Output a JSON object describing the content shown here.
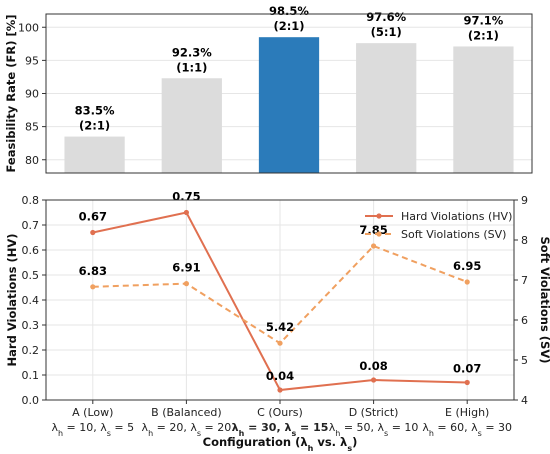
{
  "chart_data": [
    {
      "type": "bar",
      "ylabel": "Feasibility Rate (FR) [%]",
      "ylim": [
        78,
        102
      ],
      "yticks": [
        80,
        85,
        90,
        95,
        100
      ],
      "categories": [
        "A (Low)",
        "B (Balanced)",
        "C (Ours)",
        "D (Strict)",
        "E (High)"
      ],
      "values": [
        83.5,
        92.3,
        98.5,
        97.6,
        97.1
      ],
      "value_labels": [
        "83.5%",
        "92.3%",
        "98.5%",
        "97.6%",
        "97.1%"
      ],
      "ratio_labels": [
        "(2:1)",
        "(1:1)",
        "(2:1)",
        "(5:1)",
        "(2:1)"
      ],
      "highlight_index": 2,
      "colors": {
        "default": "#dcdcdc",
        "highlight": "#2b7bba"
      },
      "grid": true
    },
    {
      "type": "line",
      "categories": [
        "A (Low)",
        "B (Balanced)",
        "C (Ours)",
        "D (Strict)",
        "E (High)"
      ],
      "sublabels": [
        {
          "pre": "λ",
          "sub1": "h",
          "mid": " = 10, λ",
          "sub2": "s",
          "post": " = 5",
          "bold": false
        },
        {
          "pre": "λ",
          "sub1": "h",
          "mid": " = 20, λ",
          "sub2": "s",
          "post": " = 20",
          "bold": false
        },
        {
          "pre": "λ",
          "sub1": "h",
          "mid": " = 30, λ",
          "sub2": "s",
          "post": " = 15",
          "bold": true
        },
        {
          "pre": "λ",
          "sub1": "h",
          "mid": " = 50, λ",
          "sub2": "s",
          "post": " = 10",
          "bold": false
        },
        {
          "pre": "λ",
          "sub1": "h",
          "mid": " = 60, λ",
          "sub2": "s",
          "post": " = 30",
          "bold": false
        }
      ],
      "xlabel": {
        "pre": "Configuration (λ",
        "sub1": "h",
        "mid": " vs. λ",
        "sub2": "s",
        "post": ")"
      },
      "ylabel_left": "Hard Violations (HV)",
      "ylabel_right": "Soft Violations (SV)",
      "ylim_left": [
        0,
        0.8
      ],
      "yticks_left": [
        0.0,
        0.1,
        0.2,
        0.3,
        0.4,
        0.5,
        0.6,
        0.7,
        0.8
      ],
      "ylim_right": [
        4,
        9
      ],
      "yticks_right": [
        4,
        5,
        6,
        7,
        8,
        9
      ],
      "series": [
        {
          "name": "Hard Violations (HV)",
          "axis": "left",
          "values": [
            0.67,
            0.75,
            0.04,
            0.08,
            0.07
          ],
          "labels": [
            "0.67",
            "0.75",
            "0.04",
            "0.08",
            "0.07"
          ],
          "color": "#e07050",
          "dashed": false
        },
        {
          "name": "Soft Violations (SV)",
          "axis": "right",
          "values": [
            6.83,
            6.91,
            5.42,
            7.85,
            6.95
          ],
          "labels": [
            "6.83",
            "6.91",
            "5.42",
            "7.85",
            "6.95"
          ],
          "color": "#f0a060",
          "dashed": true
        }
      ],
      "legend": "top-right",
      "grid": true
    }
  ]
}
